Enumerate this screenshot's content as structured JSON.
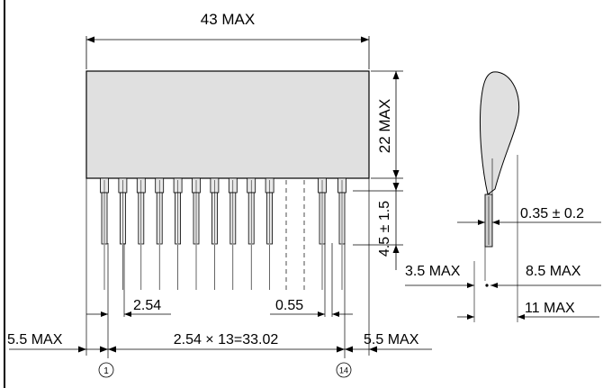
{
  "front_view": {
    "width_label": "43 MAX",
    "height_label": "22 MAX",
    "pin_length_label": "4.5 ± 1.5",
    "pitch_label": "2.54",
    "pin_width_label": "0.55",
    "left_margin_label": "5.5 MAX",
    "right_margin_label": "5.5 MAX",
    "span_label": "2.54 × 13=33.02",
    "first_pin_label": "1",
    "last_pin_label": "14"
  },
  "side_view": {
    "thickness_label": "0.35 ± 0.2",
    "offset_label": "3.5 MAX",
    "depth_label": "8.5 MAX",
    "overall_label": "11 MAX"
  },
  "colors": {
    "body_fill": "#e0e0e0",
    "line": "#000000"
  }
}
